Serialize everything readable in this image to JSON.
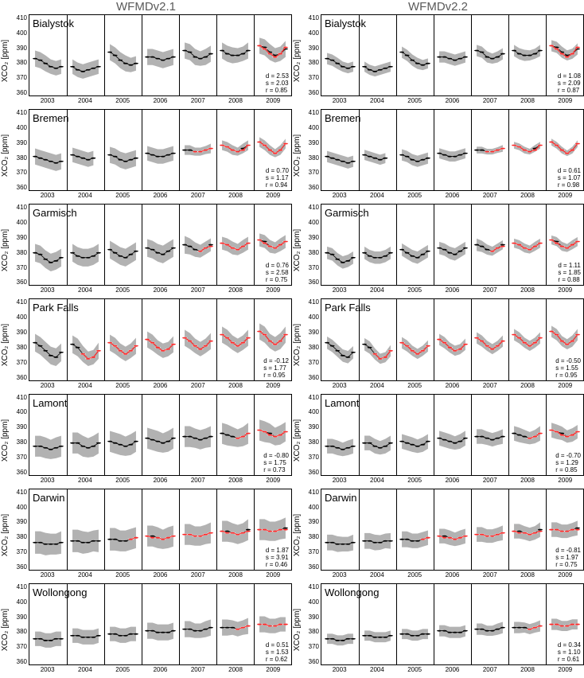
{
  "columnTitles": [
    "WFMDv2.1",
    "WFMDv2.2"
  ],
  "ylabel": "XCO₂ [ppm]",
  "yticks": [
    410,
    400,
    390,
    380,
    370,
    360
  ],
  "years": [
    "2003",
    "2004",
    "2005",
    "2006",
    "2007",
    "2008",
    "2009"
  ],
  "ylim": [
    360,
    410
  ],
  "nYearSlots": 7,
  "pointsPerYear": 6,
  "colors": {
    "band": "#aaaaaa",
    "blackLine": "#000000",
    "redLine": "#ff2a2a",
    "redMarker": "#ff2a2a"
  },
  "sites": [
    {
      "name": "Bialystok",
      "v1": {
        "d": "2.53",
        "s": "2.03",
        "r": "0.85"
      },
      "v2": {
        "d": "1.08",
        "s": "2.09",
        "r": "0.87"
      },
      "redStart": 6.0,
      "black": {
        "2003": [
          383,
          382,
          380,
          378,
          377,
          378
        ],
        "2004": [
          378,
          376,
          375,
          376,
          377,
          378
        ],
        "2005": [
          387,
          385,
          382,
          380,
          379,
          380
        ],
        "2006": [
          384,
          384,
          383,
          382,
          383,
          384
        ],
        "2007": [
          388,
          387,
          384,
          383,
          384,
          386
        ],
        "2008": [
          388,
          386,
          385,
          385,
          386,
          388
        ],
        "2009": [
          391,
          390,
          387,
          385,
          386,
          389
        ]
      },
      "red": {
        "2009": [
          391,
          389,
          386,
          384,
          386,
          390
        ]
      },
      "band": {
        "2003": [
          10,
          10,
          10,
          9,
          9,
          9
        ],
        "2004": [
          9,
          9,
          9,
          9,
          9,
          9
        ],
        "2005": [
          10,
          10,
          10,
          10,
          9,
          9
        ],
        "2006": [
          10,
          10,
          10,
          10,
          10,
          10
        ],
        "2007": [
          10,
          10,
          10,
          9,
          10,
          10
        ],
        "2008": [
          10,
          10,
          10,
          9,
          9,
          10
        ],
        "2009": [
          10,
          10,
          10,
          9,
          9,
          10
        ]
      }
    },
    {
      "name": "Bremen",
      "v1": {
        "d": "0.70",
        "s": "1.17",
        "r": "0.94"
      },
      "v2": {
        "d": "0.61",
        "s": "1.07",
        "r": "0.98"
      },
      "redStart": 4.3,
      "black": {
        "2003": [
          381,
          380,
          379,
          378,
          377,
          378
        ],
        "2004": [
          382,
          381,
          380,
          379,
          380,
          null
        ],
        "2005": [
          382,
          381,
          379,
          378,
          379,
          380
        ],
        "2006": [
          383,
          382,
          381,
          381,
          382,
          383
        ],
        "2007": [
          385,
          385,
          384,
          384,
          385,
          386
        ],
        "2008": [
          388,
          387,
          385,
          384,
          386,
          388
        ],
        "2009": [
          390,
          388,
          385,
          383,
          385,
          389
        ]
      },
      "red": {
        "2007": [
          null,
          null,
          384,
          384,
          385,
          386
        ],
        "2008": [
          388,
          387,
          385,
          384,
          385,
          388
        ],
        "2009": [
          390,
          388,
          385,
          383,
          385,
          389
        ]
      },
      "band": {
        "2003": [
          10,
          10,
          10,
          10,
          10,
          10
        ],
        "2004": [
          9,
          9,
          9,
          9,
          9,
          9
        ],
        "2005": [
          10,
          10,
          10,
          10,
          10,
          10
        ],
        "2006": [
          9,
          9,
          9,
          9,
          9,
          9
        ],
        "2007": [
          6,
          6,
          5,
          5,
          5,
          6
        ],
        "2008": [
          6,
          6,
          6,
          5,
          6,
          6
        ],
        "2009": [
          6,
          6,
          6,
          5,
          6,
          6
        ]
      }
    },
    {
      "name": "Garmisch",
      "v1": {
        "d": "0.76",
        "s": "2.58",
        "r": "0.75"
      },
      "v2": {
        "d": "1.11",
        "s": "1.85",
        "r": "0.88"
      },
      "redStart": 4.5,
      "black": {
        "2003": [
          380,
          379,
          376,
          374,
          375,
          377
        ],
        "2004": [
          380,
          378,
          377,
          377,
          378,
          380
        ],
        "2005": [
          382,
          380,
          378,
          377,
          379,
          381
        ],
        "2006": [
          383,
          382,
          380,
          379,
          381,
          383
        ],
        "2007": [
          385,
          384,
          382,
          381,
          383,
          385
        ],
        "2008": [
          386,
          385,
          383,
          382,
          384,
          386
        ],
        "2009": [
          388,
          387,
          384,
          383,
          385,
          387
        ]
      },
      "red": {
        "2007": [
          null,
          null,
          null,
          381,
          383,
          384
        ],
        "2008": [
          386,
          385,
          383,
          382,
          384,
          386
        ],
        "2009": [
          388,
          386,
          384,
          383,
          385,
          387
        ]
      },
      "band": {
        "2003": [
          11,
          11,
          11,
          11,
          11,
          11
        ],
        "2004": [
          11,
          11,
          11,
          11,
          11,
          11
        ],
        "2005": [
          11,
          11,
          11,
          11,
          11,
          11
        ],
        "2006": [
          11,
          11,
          11,
          11,
          11,
          11
        ],
        "2007": [
          11,
          10,
          9,
          8,
          8,
          8
        ],
        "2008": [
          8,
          8,
          8,
          7,
          8,
          8
        ],
        "2009": [
          8,
          8,
          8,
          7,
          8,
          8
        ]
      }
    },
    {
      "name": "Park Falls",
      "v1": {
        "d": "-0.12",
        "s": "1.77",
        "r": "0.95"
      },
      "v2": {
        "d": "-0.50",
        "s": "1.55",
        "r": "0.95"
      },
      "redStart": 1.4,
      "black": {
        "2003": [
          383,
          381,
          378,
          375,
          374,
          377
        ],
        "2004": [
          382,
          380,
          376,
          373,
          374,
          378
        ],
        "2005": [
          383,
          381,
          378,
          376,
          378,
          381
        ],
        "2006": [
          385,
          383,
          380,
          378,
          379,
          382
        ],
        "2007": [
          386,
          384,
          381,
          379,
          381,
          384
        ],
        "2008": [
          388,
          386,
          383,
          381,
          383,
          386
        ],
        "2009": [
          390,
          388,
          384,
          382,
          384,
          388
        ]
      },
      "red": {
        "2004": [
          null,
          null,
          376,
          373,
          374,
          378
        ],
        "2005": [
          383,
          381,
          378,
          376,
          378,
          381
        ],
        "2006": [
          385,
          383,
          380,
          378,
          379,
          382
        ],
        "2007": [
          386,
          384,
          381,
          379,
          381,
          384
        ],
        "2008": [
          388,
          386,
          383,
          381,
          383,
          386
        ],
        "2009": [
          390,
          388,
          384,
          382,
          384,
          388
        ]
      },
      "band": {
        "2003": [
          11,
          11,
          11,
          11,
          11,
          11
        ],
        "2004": [
          11,
          11,
          10,
          9,
          9,
          10
        ],
        "2005": [
          10,
          10,
          9,
          9,
          9,
          10
        ],
        "2006": [
          10,
          10,
          9,
          9,
          9,
          10
        ],
        "2007": [
          10,
          10,
          9,
          9,
          9,
          10
        ],
        "2008": [
          10,
          10,
          9,
          9,
          9,
          10
        ],
        "2009": [
          10,
          10,
          9,
          9,
          10,
          10
        ]
      }
    },
    {
      "name": "Lamont",
      "v1": {
        "d": "-0.80",
        "s": "1.75",
        "r": "0.73"
      },
      "v2": {
        "d": "-0.70",
        "s": "1.29",
        "r": "0.85"
      },
      "redStart": 5.5,
      "black": {
        "2003": [
          378,
          378,
          377,
          376,
          377,
          378
        ],
        "2004": [
          380,
          380,
          378,
          377,
          378,
          380
        ],
        "2005": [
          381,
          380,
          379,
          378,
          379,
          381
        ],
        "2006": [
          383,
          382,
          381,
          380,
          381,
          383
        ],
        "2007": [
          384,
          384,
          383,
          382,
          383,
          384
        ],
        "2008": [
          386,
          385,
          384,
          383,
          384,
          386
        ],
        "2009": [
          388,
          387,
          386,
          384,
          385,
          387
        ]
      },
      "red": {
        "2008": [
          null,
          null,
          null,
          383,
          384,
          386
        ],
        "2009": [
          388,
          387,
          385,
          384,
          385,
          387
        ]
      },
      "band": {
        "2003": [
          13,
          13,
          13,
          12,
          13,
          13
        ],
        "2004": [
          13,
          13,
          13,
          12,
          13,
          13
        ],
        "2005": [
          13,
          13,
          13,
          12,
          13,
          13
        ],
        "2006": [
          13,
          13,
          13,
          12,
          13,
          13
        ],
        "2007": [
          13,
          13,
          12,
          12,
          12,
          13
        ],
        "2008": [
          13,
          13,
          12,
          11,
          12,
          13
        ],
        "2009": [
          13,
          13,
          12,
          11,
          12,
          12
        ]
      }
    },
    {
      "name": "Darwin",
      "v1": {
        "d": "1.87",
        "s": "3.91",
        "r": "0.46"
      },
      "v2": {
        "d": "-0.81",
        "s": "1.97",
        "r": "0.75"
      },
      "redStart": 2.6,
      "black": {
        "2003": [
          377,
          377,
          376,
          376,
          376,
          377
        ],
        "2004": [
          378,
          378,
          377,
          377,
          378,
          378
        ],
        "2005": [
          379,
          379,
          378,
          378,
          379,
          380
        ],
        "2006": [
          381,
          381,
          380,
          379,
          380,
          381
        ],
        "2007": [
          382,
          382,
          381,
          381,
          382,
          383
        ],
        "2008": [
          384,
          384,
          383,
          382,
          383,
          385
        ],
        "2009": [
          385,
          385,
          384,
          384,
          385,
          386
        ]
      },
      "red": {
        "2005": [
          null,
          null,
          null,
          null,
          379,
          380
        ],
        "2006": [
          381,
          380,
          380,
          379,
          380,
          381
        ],
        "2007": [
          382,
          382,
          381,
          381,
          382,
          383
        ],
        "2008": [
          384,
          383,
          383,
          382,
          383,
          384
        ],
        "2009": [
          385,
          385,
          384,
          384,
          385,
          385
        ]
      },
      "band": {
        "2003": [
          14,
          14,
          14,
          13,
          13,
          14
        ],
        "2004": [
          14,
          14,
          14,
          13,
          13,
          14
        ],
        "2005": [
          14,
          14,
          13,
          13,
          13,
          13
        ],
        "2006": [
          13,
          13,
          13,
          12,
          13,
          13
        ],
        "2007": [
          13,
          13,
          12,
          12,
          12,
          13
        ],
        "2008": [
          13,
          13,
          12,
          12,
          12,
          13
        ],
        "2009": [
          13,
          13,
          12,
          12,
          12,
          13
        ]
      }
    },
    {
      "name": "Wollongong",
      "v1": {
        "d": "0.51",
        "s": "1.53",
        "r": "0.62"
      },
      "v2": {
        "d": "0.34",
        "s": "1.10",
        "r": "0.61"
      },
      "redStart": 5.5,
      "black": {
        "2003": [
          376,
          376,
          375,
          375,
          376,
          376
        ],
        "2004": [
          378,
          378,
          377,
          377,
          377,
          378
        ],
        "2005": [
          379,
          379,
          378,
          378,
          379,
          379
        ],
        "2006": [
          381,
          381,
          380,
          380,
          380,
          381
        ],
        "2007": [
          382,
          382,
          381,
          381,
          382,
          383
        ],
        "2008": [
          383,
          383,
          383,
          382,
          383,
          384
        ],
        "2009": [
          385,
          385,
          384,
          384,
          385,
          385
        ]
      },
      "red": {
        "2008": [
          null,
          null,
          null,
          382,
          383,
          384
        ],
        "2009": [
          385,
          385,
          384,
          384,
          385,
          385
        ]
      },
      "band": {
        "2003": [
          9,
          9,
          9,
          9,
          9,
          9
        ],
        "2004": [
          9,
          9,
          9,
          9,
          9,
          9
        ],
        "2005": [
          9,
          9,
          9,
          9,
          9,
          9
        ],
        "2006": [
          10,
          10,
          10,
          10,
          10,
          10
        ],
        "2007": [
          10,
          10,
          9,
          9,
          10,
          10
        ],
        "2008": [
          10,
          10,
          9,
          9,
          9,
          10
        ],
        "2009": [
          10,
          10,
          9,
          9,
          9,
          9
        ]
      }
    }
  ]
}
